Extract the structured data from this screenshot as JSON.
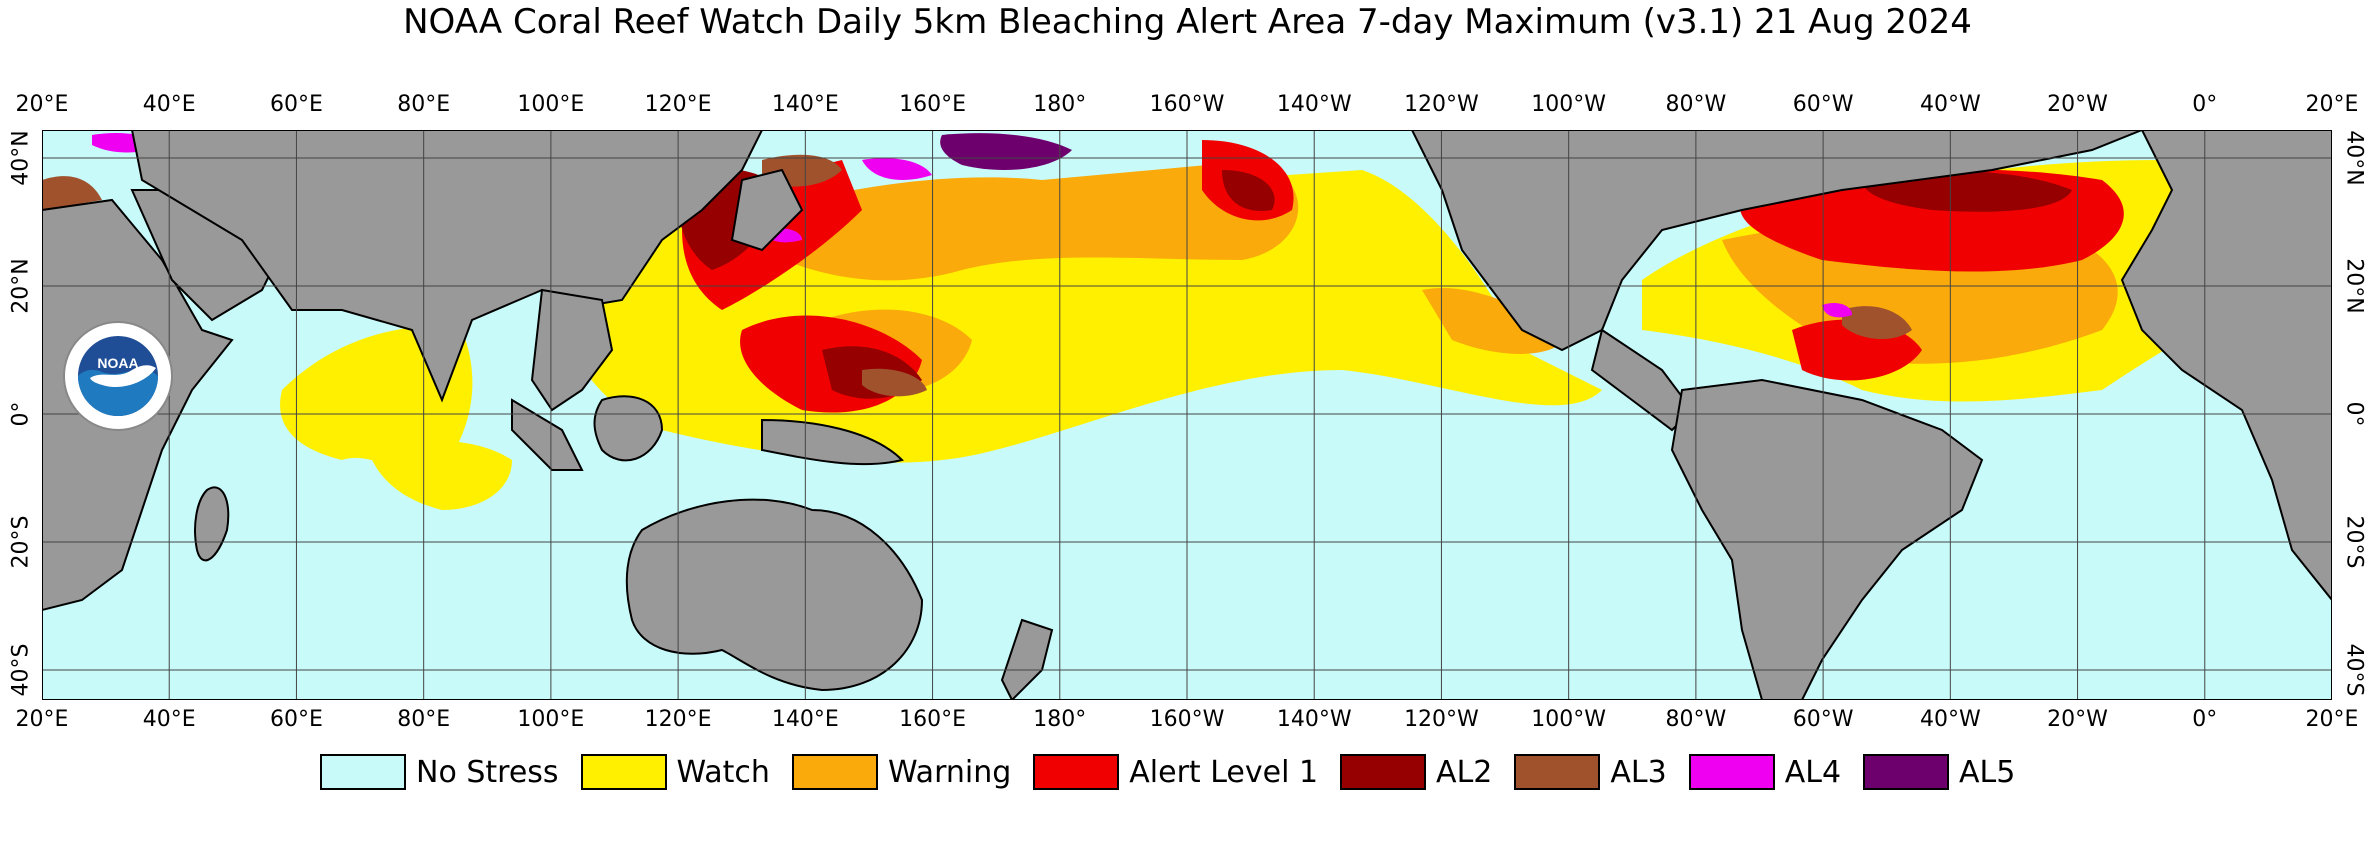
{
  "title": "NOAA Coral Reef Watch Daily 5km Bleaching Alert Area 7-day Maximum  (v3.1)   21 Aug 2024",
  "logo": {
    "icon": "noaa-logo-icon",
    "text": "NOAA"
  },
  "longitude_labels": [
    "20°E",
    "40°E",
    "60°E",
    "80°E",
    "100°E",
    "120°E",
    "140°E",
    "160°E",
    "180°",
    "160°W",
    "140°W",
    "120°W",
    "100°W",
    "80°W",
    "60°W",
    "40°W",
    "20°W",
    "0°",
    "20°E"
  ],
  "latitude_labels_left": [
    "40°N",
    "20°N",
    "0°",
    "20°S",
    "40°S"
  ],
  "latitude_labels_right": [
    "40°N",
    "20°N",
    "0°",
    "20°S",
    "40°S"
  ],
  "legend": [
    {
      "label": "No Stress",
      "color": "#c8fafa"
    },
    {
      "label": "Watch",
      "color": "#fff000"
    },
    {
      "label": "Warning",
      "color": "#faaa0a"
    },
    {
      "label": "Alert Level 1",
      "color": "#f00000"
    },
    {
      "label": "AL2",
      "color": "#960000"
    },
    {
      "label": "AL3",
      "color": "#a0522d"
    },
    {
      "label": "AL4",
      "color": "#f000f0"
    },
    {
      "label": "AL5",
      "color": "#6e006e"
    }
  ],
  "colors": {
    "land": "#999999",
    "ocean": "#c8fafa",
    "grid": "#444444"
  }
}
